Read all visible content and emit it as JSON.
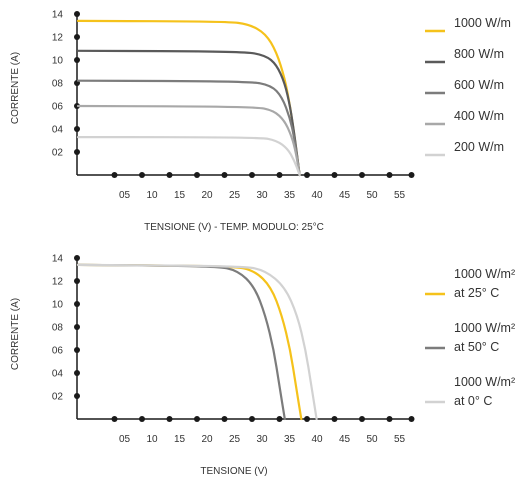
{
  "colors": {
    "axis": "#1a1a1a",
    "text": "#333333",
    "yellow": "#f5c21b",
    "dark_gray": "#5a5a5a",
    "mid_gray": "#7c7c7c",
    "light_gray": "#a8a8a8",
    "lighter_gray": "#d2d2d2"
  },
  "chart_data": [
    {
      "type": "line",
      "title": "",
      "xlabel": "TENSIONE (V) - TEMP. MODULO: 25°C",
      "ylabel": "CORRENTE (A)",
      "xlim": [
        0,
        57
      ],
      "ylim": [
        0,
        14
      ],
      "x_ticks": [
        5,
        10,
        15,
        20,
        25,
        30,
        35,
        40,
        45,
        50,
        55
      ],
      "x_tick_labels": [
        "05",
        "10",
        "15",
        "20",
        "25",
        "30",
        "35",
        "40",
        "45",
        "50",
        "55"
      ],
      "y_ticks": [
        2,
        4,
        6,
        8,
        10,
        12,
        14
      ],
      "y_tick_labels": [
        "02",
        "04",
        "06",
        "08",
        "10",
        "12",
        "14"
      ],
      "grid": false,
      "legend_position": "right",
      "series": [
        {
          "name": "1000 W/m",
          "color": "#f5c21b",
          "isc": 13.4,
          "voc": 39.2,
          "knee": 26,
          "x": [
            0,
            26,
            30,
            33,
            35,
            36.5,
            37.5,
            38.3,
            39.2
          ],
          "y": [
            13.4,
            13.35,
            13.1,
            12.3,
            10.7,
            8.4,
            5.9,
            3.3,
            0
          ]
        },
        {
          "name": "800 W/m",
          "color": "#5a5a5a",
          "isc": 10.8,
          "voc": 39.2,
          "knee": 29,
          "x": [
            0,
            29,
            33,
            35,
            36.5,
            37.5,
            38.3,
            39.2
          ],
          "y": [
            10.8,
            10.75,
            10.4,
            9.6,
            8.0,
            5.9,
            3.4,
            0
          ]
        },
        {
          "name": "600 W/m",
          "color": "#7c7c7c",
          "isc": 8.2,
          "voc": 39.2,
          "knee": 30,
          "x": [
            0,
            30,
            34,
            36,
            37.5,
            38.4,
            39.2
          ],
          "y": [
            8.2,
            8.15,
            7.8,
            6.8,
            4.9,
            2.8,
            0
          ]
        },
        {
          "name": "400 W/m",
          "color": "#a8a8a8",
          "isc": 6.0,
          "voc": 39.2,
          "knee": 31,
          "x": [
            0,
            31,
            34.5,
            36.5,
            37.8,
            38.5,
            39.2
          ],
          "y": [
            6.0,
            5.95,
            5.6,
            4.7,
            3.3,
            2.0,
            0
          ]
        },
        {
          "name": "200 W/m",
          "color": "#d2d2d2",
          "isc": 3.3,
          "voc": 39.2,
          "knee": 32,
          "x": [
            0,
            32,
            35,
            37,
            38.2,
            39.2
          ],
          "y": [
            3.3,
            3.28,
            3.0,
            2.3,
            1.3,
            0
          ]
        }
      ]
    },
    {
      "type": "line",
      "title": "",
      "xlabel": "TENSIONE (V)",
      "ylabel": "CORRENTE (A)",
      "xlim": [
        0,
        57
      ],
      "ylim": [
        0,
        14
      ],
      "x_ticks": [
        5,
        10,
        15,
        20,
        25,
        30,
        35,
        40,
        45,
        50,
        55
      ],
      "x_tick_labels": [
        "05",
        "10",
        "15",
        "20",
        "25",
        "30",
        "35",
        "40",
        "45",
        "50",
        "55"
      ],
      "y_ticks": [
        2,
        4,
        6,
        8,
        10,
        12,
        14
      ],
      "y_tick_labels": [
        "02",
        "04",
        "06",
        "08",
        "10",
        "12",
        "14"
      ],
      "grid": false,
      "legend_position": "right",
      "series": [
        {
          "name": "1000 W/m² at 25° C",
          "legend_lines": [
            "1000 W/m²",
            "at 25° C"
          ],
          "color": "#f5c21b",
          "isc": 13.4,
          "voc": 39.5,
          "knee": 27,
          "x": [
            0,
            27,
            31,
            34,
            36,
            37.5,
            38.5,
            39.5
          ],
          "y": [
            13.4,
            13.3,
            12.9,
            11.5,
            9.0,
            6.0,
            3.0,
            0
          ]
        },
        {
          "name": "1000 W/m² at 50° C",
          "legend_lines": [
            "1000 W/m²",
            "at 50° C"
          ],
          "color": "#7c7c7c",
          "isc": 13.4,
          "voc": 36.5,
          "knee": 24,
          "x": [
            0,
            24,
            28,
            31,
            33,
            34.5,
            35.5,
            36.5
          ],
          "y": [
            13.4,
            13.3,
            12.9,
            11.5,
            9.0,
            6.0,
            3.0,
            0
          ]
        },
        {
          "name": "1000 W/m² at 0° C",
          "legend_lines": [
            "1000 W/m²",
            "at 0° C"
          ],
          "color": "#d2d2d2",
          "isc": 13.4,
          "voc": 42.3,
          "knee": 29,
          "x": [
            0,
            29,
            33,
            36.5,
            38.8,
            40.3,
            41.3,
            42.3
          ],
          "y": [
            13.4,
            13.3,
            12.9,
            11.5,
            9.0,
            6.0,
            3.0,
            0
          ]
        }
      ]
    }
  ]
}
